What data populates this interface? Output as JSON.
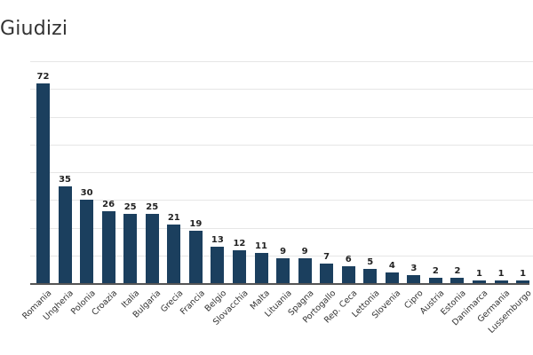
{
  "title": "Giudizi",
  "colors": {
    "bar": "#1b3f5e",
    "grid": "#e6e6e6",
    "axis": "#555555"
  },
  "chart_data": {
    "type": "bar",
    "title": "Giudizi",
    "xlabel": "",
    "ylabel": "",
    "ylim": [
      0,
      80
    ],
    "grid": true,
    "legend": null,
    "categories": [
      "Romania",
      "Ungheria",
      "Polonia",
      "Croazia",
      "Italia",
      "Bulgaria",
      "Grecia",
      "Francia",
      "Belgio",
      "Slovacchia",
      "Malta",
      "Lituania",
      "Spagna",
      "Portogallo",
      "Rep. Ceca",
      "Lettonia",
      "Slovenia",
      "Cipro",
      "Austria",
      "Estonia",
      "Danimarca",
      "Germania",
      "Lussemburgo"
    ],
    "values": [
      72,
      35,
      30,
      26,
      25,
      25,
      21,
      19,
      13,
      12,
      11,
      9,
      9,
      7,
      6,
      5,
      4,
      3,
      2,
      2,
      1,
      1,
      1
    ]
  }
}
